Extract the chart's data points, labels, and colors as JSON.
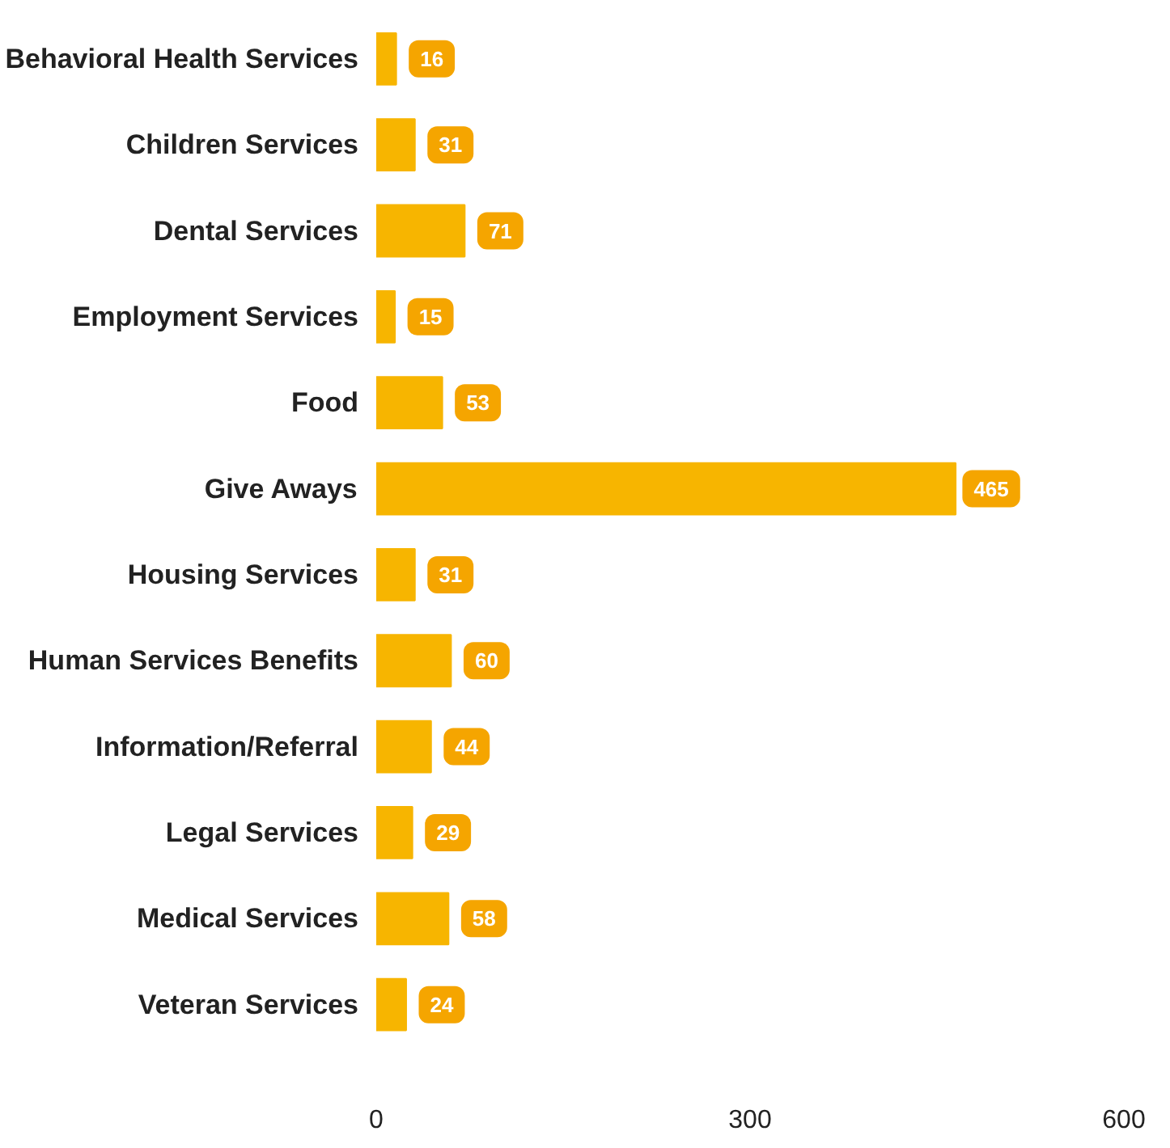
{
  "chart_data": {
    "type": "bar",
    "orientation": "horizontal",
    "categories": [
      "Behavioral Health Services",
      "Children Services",
      "Dental Services",
      "Employment Services",
      "Food",
      "Give Aways",
      "Housing Services",
      "Human Services Benefits",
      "Information/Referral",
      "Legal Services",
      "Medical Services",
      "Veteran Services"
    ],
    "values": [
      16,
      31,
      71,
      15,
      53,
      465,
      31,
      60,
      44,
      29,
      58,
      24
    ],
    "color": "#f7b500",
    "xlim": [
      0,
      600
    ],
    "xticks": [
      0,
      300,
      600
    ],
    "data_labels": true,
    "grid": false
  }
}
